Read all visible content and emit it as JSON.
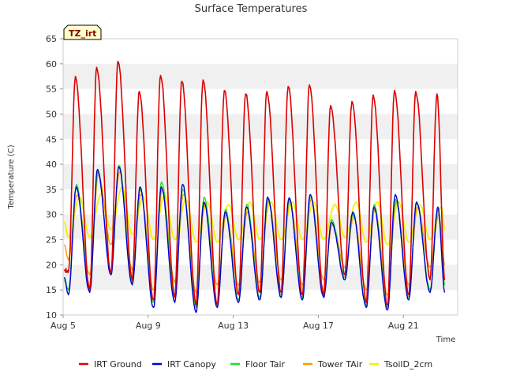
{
  "chart_data": {
    "type": "line",
    "title": "Surface Temperatures",
    "badge": "TZ_irt",
    "xlabel": "Time",
    "ylabel": "Temperature (C)",
    "ylim": [
      10,
      65
    ],
    "yticks": [
      10,
      15,
      20,
      25,
      30,
      35,
      40,
      45,
      50,
      55,
      60,
      65
    ],
    "xlim": [
      5.0,
      23.55
    ],
    "xticks": [
      {
        "x": 5,
        "label": "Aug 5"
      },
      {
        "x": 9,
        "label": "Aug 9"
      },
      {
        "x": 13,
        "label": "Aug 13"
      },
      {
        "x": 17,
        "label": "Aug 17"
      },
      {
        "x": 21,
        "label": "Aug 21"
      }
    ],
    "grid": "horizontal bands",
    "legend_position": "bottom",
    "daily": {
      "days": [
        5,
        6,
        7,
        8,
        9,
        10,
        11,
        12,
        13,
        14,
        15,
        16,
        17,
        18,
        19,
        20,
        21,
        22
      ],
      "irt_ground_max": [
        57.5,
        59.3,
        60.5,
        54.5,
        57.7,
        56.5,
        56.8,
        54.7,
        54.0,
        54.5,
        55.5,
        55.8,
        51.7,
        52.5,
        53.8,
        54.7,
        54.5,
        54.0
      ],
      "irt_ground_min": [
        18.5,
        15.0,
        18.5,
        17.0,
        13.0,
        13.5,
        12.0,
        12.0,
        14.0,
        14.5,
        14.5,
        14.0,
        14.0,
        18.0,
        12.5,
        12.0,
        14.0,
        17.0
      ],
      "irt_canopy_max": [
        35.5,
        39.0,
        39.5,
        35.5,
        35.5,
        36.0,
        32.5,
        30.5,
        31.5,
        33.5,
        33.3,
        34.0,
        28.5,
        30.5,
        31.5,
        34.0,
        32.5,
        31.5
      ],
      "irt_canopy_min": [
        14.0,
        14.5,
        18.0,
        16.0,
        11.5,
        12.5,
        10.5,
        11.5,
        12.5,
        13.0,
        13.5,
        13.0,
        13.5,
        17.0,
        11.5,
        11.0,
        13.0,
        14.5
      ],
      "floor_tair_max": [
        36.0,
        38.5,
        39.8,
        35.0,
        36.5,
        35.0,
        33.5,
        31.0,
        32.0,
        33.0,
        33.0,
        33.5,
        29.0,
        30.0,
        32.0,
        33.0,
        32.5,
        31.0
      ],
      "floor_tair_min": [
        15.0,
        15.0,
        18.5,
        16.5,
        12.5,
        13.5,
        11.5,
        12.0,
        13.0,
        13.5,
        14.0,
        13.5,
        14.0,
        17.5,
        12.0,
        11.5,
        13.5,
        15.0
      ],
      "tower_tair_max": [
        34.0,
        38.0,
        38.5,
        34.0,
        35.0,
        34.0,
        32.0,
        30.0,
        30.5,
        32.5,
        32.5,
        33.0,
        28.0,
        29.5,
        31.0,
        32.5,
        31.5,
        30.0
      ],
      "tower_tair_min": [
        21.0,
        18.0,
        24.0,
        19.0,
        15.0,
        16.5,
        14.5,
        16.0,
        16.0,
        16.5,
        17.0,
        16.0,
        17.0,
        19.5,
        15.0,
        14.0,
        16.0,
        19.5
      ],
      "tsoil_max": [
        33.5,
        34.0,
        35.5,
        33.5,
        34.0,
        33.0,
        32.5,
        32.0,
        32.5,
        32.5,
        32.5,
        32.5,
        32.0,
        32.5,
        32.5,
        32.5,
        32.0,
        31.5
      ],
      "tsoil_min": [
        25.5,
        25.5,
        27.0,
        26.0,
        25.0,
        25.0,
        24.5,
        24.5,
        25.0,
        25.0,
        25.0,
        25.0,
        25.0,
        25.5,
        24.5,
        24.0,
        24.5,
        25.0
      ],
      "start": {
        "irt_ground": 19.0,
        "irt_canopy": 17.5,
        "floor_tair": 17.0,
        "tower_tair": 24.0,
        "tsoil": 28.5
      },
      "end": {
        "irt_ground": 17.0,
        "irt_canopy": 14.5,
        "floor_tair": 16.0,
        "tower_tair": 20.0,
        "tsoil": 27.0
      }
    },
    "series": [
      {
        "key": "irt_ground",
        "name": "IRT Ground",
        "color": "#dd0000",
        "peak_phase": 0.58,
        "width": 1.6
      },
      {
        "key": "irt_canopy",
        "name": "IRT Canopy",
        "color": "#0000cc",
        "peak_phase": 0.62,
        "width": 1.4
      },
      {
        "key": "floor_tair",
        "name": "Floor Tair",
        "color": "#22dd22",
        "peak_phase": 0.63,
        "width": 1.4
      },
      {
        "key": "tower_tair",
        "name": "Tower TAir",
        "color": "#ff9900",
        "peak_phase": 0.66,
        "width": 1.4
      },
      {
        "key": "tsoil",
        "name": "TsoilD_2cm",
        "color": "#f2f200",
        "peak_phase": 0.78,
        "width": 1.8
      }
    ]
  }
}
